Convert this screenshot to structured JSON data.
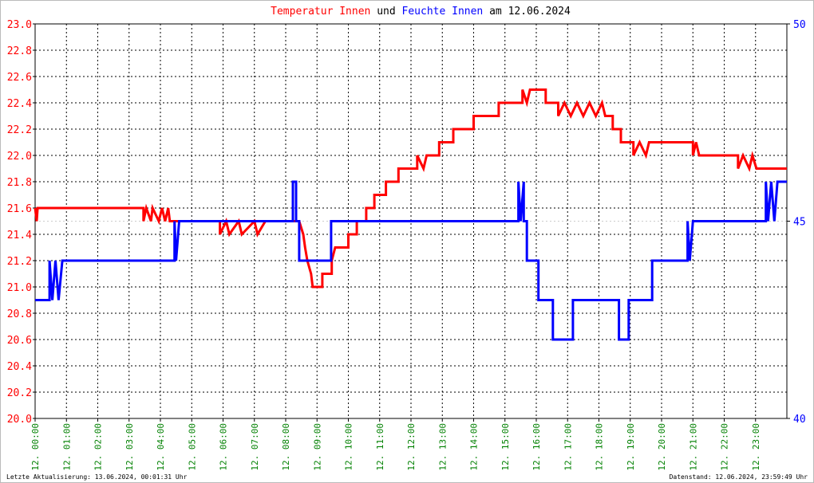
{
  "chart_data": {
    "type": "line",
    "title": {
      "connector": "und",
      "suffix": "am 12.06.2024"
    },
    "footer_left": "Letzte Aktualisierung: 13.06.2024, 00:01:31 Uhr",
    "footer_right": "Datenstand: 12.06.2024, 23:59:49 Uhr",
    "grid": true,
    "xlim": [
      0,
      24
    ],
    "xticks": [
      {
        "value": 0,
        "label": "12. 00:00"
      },
      {
        "value": 1,
        "label": "12. 01:00"
      },
      {
        "value": 2,
        "label": "12. 02:00"
      },
      {
        "value": 3,
        "label": "12. 03:00"
      },
      {
        "value": 4,
        "label": "12. 04:00"
      },
      {
        "value": 5,
        "label": "12. 05:00"
      },
      {
        "value": 6,
        "label": "12. 06:00"
      },
      {
        "value": 7,
        "label": "12. 07:00"
      },
      {
        "value": 8,
        "label": "12. 08:00"
      },
      {
        "value": 9,
        "label": "12. 09:00"
      },
      {
        "value": 10,
        "label": "12. 10:00"
      },
      {
        "value": 11,
        "label": "12. 11:00"
      },
      {
        "value": 12,
        "label": "12. 12:00"
      },
      {
        "value": 13,
        "label": "12. 13:00"
      },
      {
        "value": 14,
        "label": "12. 14:00"
      },
      {
        "value": 15,
        "label": "12. 15:00"
      },
      {
        "value": 16,
        "label": "12. 16:00"
      },
      {
        "value": 17,
        "label": "12. 17:00"
      },
      {
        "value": 18,
        "label": "12. 18:00"
      },
      {
        "value": 19,
        "label": "12. 19:00"
      },
      {
        "value": 20,
        "label": "12. 20:00"
      },
      {
        "value": 21,
        "label": "12. 21:00"
      },
      {
        "value": 22,
        "label": "12. 22:00"
      },
      {
        "value": 23,
        "label": "12. 23:00"
      }
    ],
    "ylim": [
      20,
      23
    ],
    "yticks": [
      {
        "value": 20,
        "label": "20.0"
      },
      20.2,
      20.4,
      20.6,
      20.8,
      {
        "value": 21,
        "label": "21.0"
      },
      21.2,
      21.4,
      21.6,
      21.8,
      {
        "value": 22,
        "label": "22.0"
      },
      22.2,
      22.4,
      22.6,
      22.8,
      {
        "value": 23,
        "label": "23.0"
      }
    ],
    "y2lim": [
      40,
      50
    ],
    "y2ticks": [
      40,
      45,
      50
    ],
    "series": [
      {
        "name": "Temperatur Innen",
        "color": "#ff0000",
        "x": [
          0,
          0.05,
          0.08,
          3.46,
          3.46,
          3.55,
          3.7,
          3.75,
          3.95,
          4.05,
          4.15,
          4.25,
          4.3,
          5.9,
          5.9,
          6.1,
          6.2,
          6.5,
          6.6,
          7.0,
          7.1,
          7.35,
          8.43,
          8.56,
          8.62,
          8.69,
          8.81,
          8.86,
          9.17,
          9.17,
          9.47,
          9.47,
          9.58,
          10.0,
          10.0,
          10.27,
          10.27,
          10.57,
          10.57,
          10.83,
          10.83,
          11.2,
          11.2,
          11.6,
          11.6,
          12.2,
          12.2,
          12.4,
          12.5,
          12.9,
          12.9,
          13.35,
          13.35,
          14.0,
          14.0,
          14.8,
          14.8,
          15.56,
          15.56,
          15.7,
          15.8,
          16.3,
          16.3,
          16.7,
          16.7,
          16.9,
          17.1,
          17.3,
          17.5,
          17.7,
          17.9,
          18.1,
          18.2,
          18.44,
          18.44,
          18.7,
          18.7,
          19.1,
          19.1,
          19.3,
          19.5,
          19.6,
          21.0,
          21.0,
          21.1,
          21.2,
          22.44,
          22.44,
          22.6,
          22.8,
          22.9,
          23.03,
          24
        ],
        "values": [
          21.6,
          21.5,
          21.6,
          21.6,
          21.5,
          21.6,
          21.5,
          21.6,
          21.5,
          21.6,
          21.5,
          21.6,
          21.5,
          21.5,
          21.4,
          21.5,
          21.4,
          21.5,
          21.4,
          21.5,
          21.4,
          21.5,
          21.5,
          21.4,
          21.3,
          21.2,
          21.1,
          21.0,
          21.0,
          21.1,
          21.1,
          21.2,
          21.3,
          21.3,
          21.4,
          21.4,
          21.5,
          21.5,
          21.6,
          21.6,
          21.7,
          21.7,
          21.8,
          21.8,
          21.9,
          21.9,
          22.0,
          21.9,
          22.0,
          22.0,
          22.1,
          22.1,
          22.2,
          22.2,
          22.3,
          22.3,
          22.4,
          22.4,
          22.5,
          22.4,
          22.5,
          22.5,
          22.4,
          22.4,
          22.3,
          22.4,
          22.3,
          22.4,
          22.3,
          22.4,
          22.3,
          22.4,
          22.3,
          22.3,
          22.2,
          22.2,
          22.1,
          22.1,
          22.0,
          22.1,
          22.0,
          22.1,
          22.1,
          22.0,
          22.1,
          22.0,
          22.0,
          21.9,
          22.0,
          21.9,
          22.0,
          21.9,
          21.9
        ]
      },
      {
        "name": "Feuchte Innen",
        "color": "#0000ff",
        "axis": "y2",
        "x": [
          0,
          0.46,
          0.46,
          0.55,
          0.65,
          0.75,
          0.87,
          4.45,
          4.45,
          4.5,
          4.6,
          8.23,
          8.23,
          8.33,
          8.33,
          8.43,
          8.43,
          9.45,
          9.45,
          15.43,
          15.43,
          15.5,
          15.6,
          15.6,
          15.7,
          15.7,
          16.07,
          16.07,
          16.53,
          16.53,
          17.17,
          17.17,
          18.64,
          18.64,
          18.95,
          18.95,
          19.7,
          19.7,
          20.83,
          20.83,
          20.9,
          21.0,
          23.33,
          23.33,
          23.4,
          23.5,
          23.6,
          23.7,
          24
        ],
        "values": [
          43,
          43,
          44,
          43,
          44,
          43,
          44,
          44,
          45,
          44,
          45,
          45,
          46,
          46,
          45,
          45,
          44,
          44,
          45,
          45,
          46,
          45,
          46,
          45,
          45,
          44,
          44,
          43,
          43,
          42,
          42,
          43,
          43,
          42,
          42,
          43,
          43,
          44,
          44,
          45,
          44,
          45,
          45,
          46,
          45,
          46,
          45,
          46,
          46
        ]
      }
    ]
  }
}
